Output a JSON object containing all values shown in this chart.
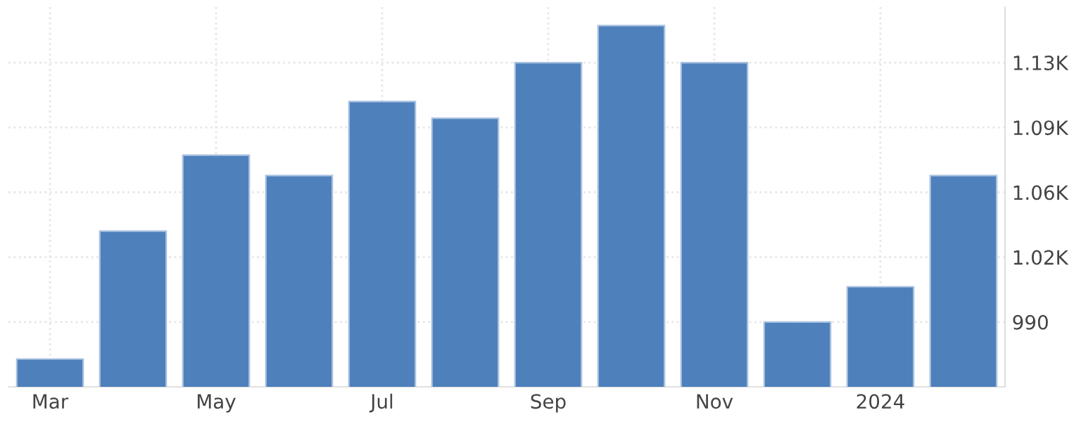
{
  "chart_data": {
    "type": "bar",
    "categories": [
      "Mar",
      null,
      "May",
      null,
      "Jul",
      null,
      "Sep",
      null,
      "Nov",
      null,
      "2024",
      null
    ],
    "values": [
      970,
      1039,
      1080,
      1069,
      1109,
      1100,
      1130,
      1150,
      1130,
      990,
      1009,
      1069
    ],
    "color": "#4e80bc",
    "ylim": [
      955,
      1160
    ],
    "yticks": [
      990,
      {
        "value": 1025,
        "label": "1.02K"
      },
      {
        "value": 1060,
        "label": "1.06K"
      },
      {
        "value": 1095,
        "label": "1.09K"
      },
      {
        "value": 1130,
        "label": "1.13K"
      }
    ],
    "grid": true
  }
}
